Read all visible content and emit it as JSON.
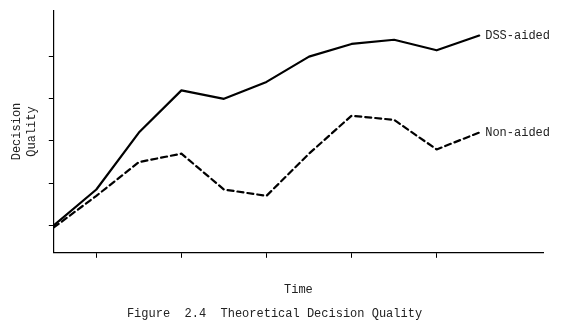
{
  "chart_data": {
    "type": "line",
    "x": [
      0,
      1,
      2,
      3,
      4,
      5,
      6,
      7,
      8,
      9,
      10
    ],
    "series": [
      {
        "name": "DSS-aided",
        "color": "#000000",
        "line_style": "solid",
        "values": [
          0.08,
          0.25,
          0.52,
          0.72,
          0.68,
          0.76,
          0.88,
          0.94,
          0.96,
          0.91,
          0.98
        ]
      },
      {
        "name": "Non-aided",
        "color": "#000000",
        "line_style": "dashed",
        "values": [
          0.07,
          0.22,
          0.38,
          0.42,
          0.25,
          0.22,
          0.42,
          0.6,
          0.58,
          0.44,
          0.52
        ]
      }
    ],
    "xlabel": "Time",
    "ylabel": "Decision\nQuality",
    "caption": "Figure  2.4  Theoretical Decision Quality",
    "xlim": [
      0,
      11.5
    ],
    "ylim": [
      -0.05,
      1.1
    ],
    "xticks": [
      1,
      3,
      5,
      7,
      9
    ],
    "yticks": [
      0.08,
      0.28,
      0.48,
      0.68,
      0.88
    ],
    "tick_labels": false,
    "grid": false
  }
}
